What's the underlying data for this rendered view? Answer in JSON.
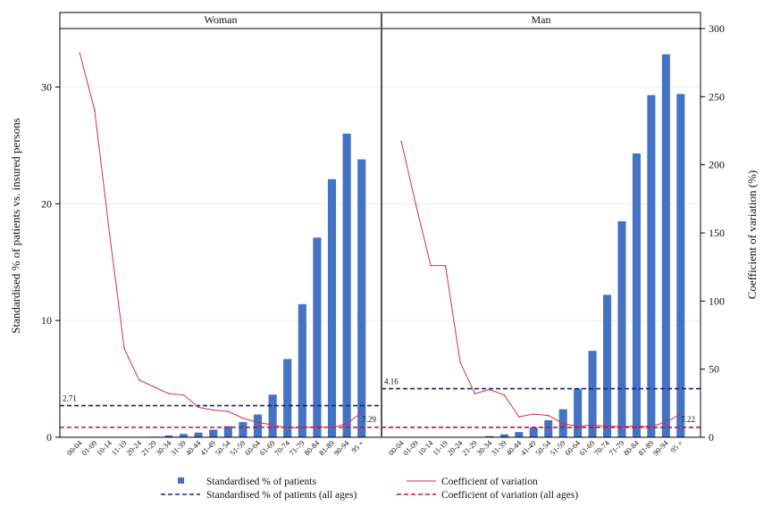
{
  "chart_data": {
    "type": "bar",
    "ylabel": "Standardised % of patients vs. insured persons",
    "y2label": "Coefficient of variation (%)",
    "ylim": [
      0,
      35
    ],
    "y2lim": [
      0,
      300
    ],
    "yticks": [
      "0",
      "10",
      "20",
      "30"
    ],
    "y2ticks": [
      "0",
      "50",
      "100",
      "150",
      "200",
      "250",
      "300"
    ],
    "categories": [
      "00-04",
      "01-09",
      "10-14",
      "11-19",
      "20-24",
      "21-29",
      "30-34",
      "31-39",
      "40-44",
      "41-49",
      "50-54",
      "51-59",
      "60-64",
      "61-69",
      "70-74",
      "71-79",
      "80-84",
      "81-89",
      "90-94",
      "95 +"
    ],
    "legend": {
      "bar": "Standardised % of patients",
      "cv": "Coefficient of variation",
      "bar_all": "Standardised % of patients (all ages)",
      "cv_all": "Coefficient of variation (all ages)"
    },
    "colors": {
      "bar": "#4472C4",
      "cv": "#D2304A",
      "bar_all": "#1A237E",
      "cv_all": "#C8102E"
    },
    "panels": [
      {
        "title": "Woman",
        "bar_all_ages": 2.71,
        "bar_all_label": "2.71",
        "cv_all_ages": 7.29,
        "cv_all_label": "7.29",
        "values": [
          0,
          0,
          0,
          0,
          0.02,
          0.05,
          0.15,
          0.28,
          0.4,
          0.65,
          0.95,
          1.3,
          1.95,
          3.65,
          6.7,
          11.4,
          17.1,
          22.1,
          26.0,
          23.8
        ],
        "cv": [
          282,
          240,
          150,
          65,
          42,
          37,
          32,
          31,
          22,
          20,
          19,
          14,
          11,
          9,
          7,
          7,
          8,
          7,
          10,
          18
        ]
      },
      {
        "title": "Man",
        "bar_all_ages": 4.16,
        "bar_all_label": "4.16",
        "cv_all_ages": 7.22,
        "cv_all_label": "7.22",
        "values": [
          0,
          0,
          0,
          0,
          0,
          0.03,
          0.1,
          0.25,
          0.45,
          0.85,
          1.45,
          2.4,
          4.15,
          7.4,
          12.2,
          18.5,
          24.3,
          29.3,
          32.8,
          29.4
        ],
        "cv": [
          217,
          170,
          126,
          126,
          55,
          32,
          35,
          31,
          15,
          17,
          16,
          10,
          8,
          9,
          8,
          8,
          8,
          8,
          11,
          17
        ]
      }
    ]
  }
}
